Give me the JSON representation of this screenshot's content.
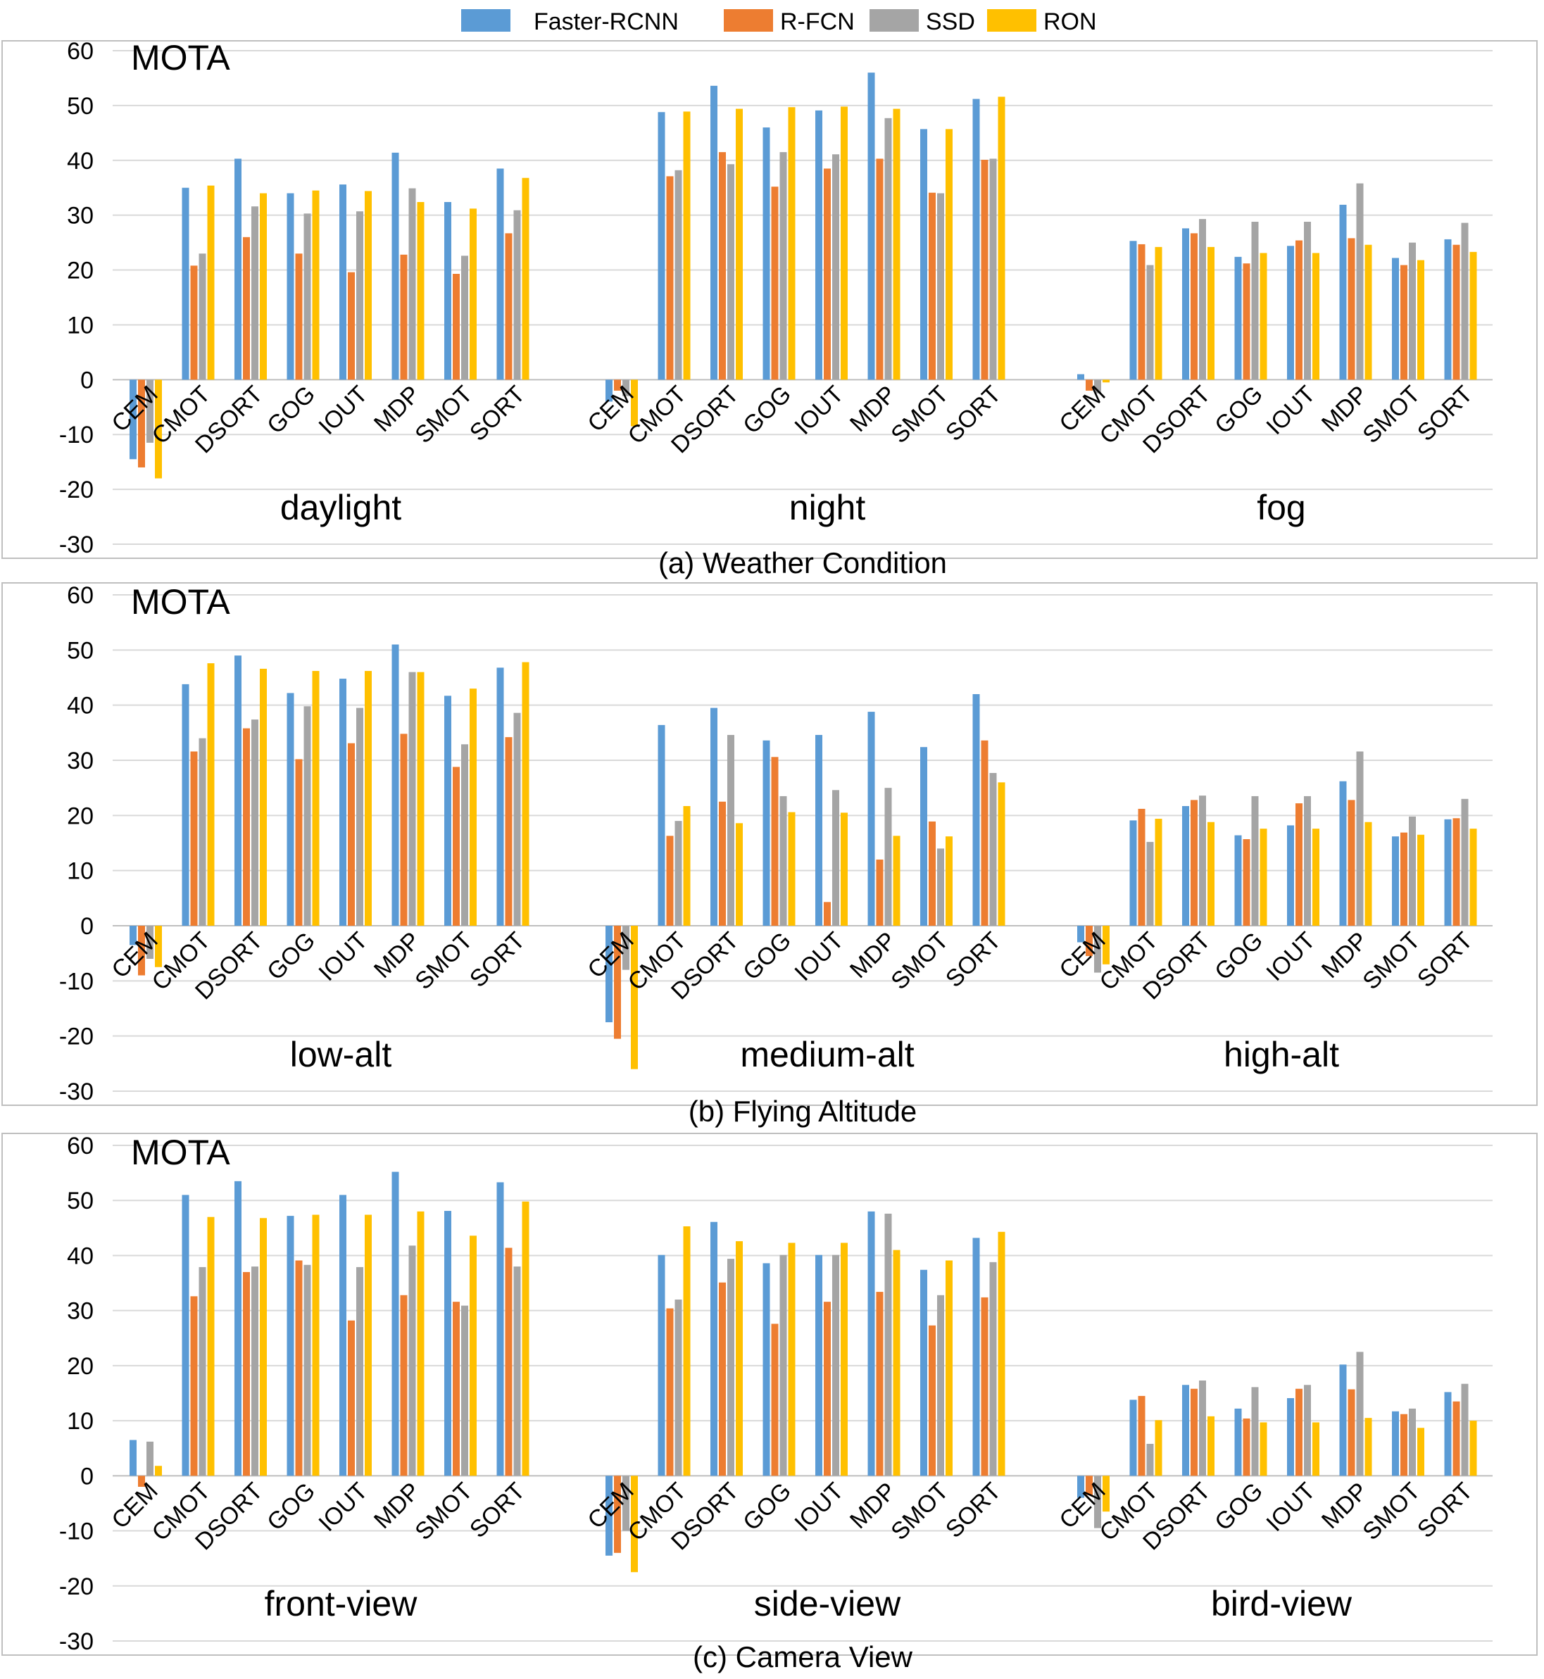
{
  "legend": [
    {
      "name": "Faster-RCNN",
      "color": "#5b9bd5"
    },
    {
      "name": "R-FCN",
      "color": "#ed7d31"
    },
    {
      "name": "SSD",
      "color": "#a5a5a5"
    },
    {
      "name": "RON",
      "color": "#ffc000"
    }
  ],
  "chart_data": [
    {
      "type": "bar",
      "caption": "(a) Weather Condition",
      "ylabel": "MOTA",
      "ylim": [
        -30,
        60
      ],
      "yticks": [
        "60",
        "50",
        "40",
        "30",
        "20",
        "10",
        "0",
        "-10",
        "-20",
        "-30"
      ],
      "categories": [
        "CEM",
        "CMOT",
        "DSORT",
        "GOG",
        "IOUT",
        "MDP",
        "SMOT",
        "SORT"
      ],
      "groups": [
        {
          "name": "daylight",
          "series": {
            "Faster-RCNN": [
              -14.5,
              35.0,
              40.3,
              34.0,
              35.6,
              41.4,
              32.4,
              38.5
            ],
            "R-FCN": [
              -16.0,
              20.8,
              26.0,
              23.0,
              19.6,
              22.8,
              19.3,
              26.7
            ],
            "SSD": [
              -11.5,
              23.0,
              31.6,
              30.3,
              30.7,
              34.9,
              22.6,
              30.9
            ],
            "RON": [
              -18.0,
              35.4,
              34.0,
              34.5,
              34.4,
              32.4,
              31.2,
              36.8
            ]
          }
        },
        {
          "name": "night",
          "series": {
            "Faster-RCNN": [
              -4.0,
              48.8,
              53.6,
              46.0,
              49.1,
              56.0,
              45.7,
              51.2
            ],
            "R-FCN": [
              -2.0,
              37.1,
              41.5,
              35.2,
              38.5,
              40.3,
              34.1,
              40.1
            ],
            "SSD": [
              -3.0,
              38.2,
              39.3,
              41.5,
              41.1,
              47.7,
              34.0,
              40.3
            ],
            "RON": [
              -8.5,
              48.9,
              49.4,
              49.7,
              49.8,
              49.4,
              45.7,
              51.6
            ]
          }
        },
        {
          "name": "fog",
          "series": {
            "Faster-RCNN": [
              1.0,
              25.3,
              27.6,
              22.4,
              24.4,
              31.9,
              22.2,
              25.6
            ],
            "R-FCN": [
              -2.0,
              24.7,
              26.7,
              21.2,
              25.4,
              25.8,
              20.9,
              24.6
            ],
            "SSD": [
              -2.5,
              20.9,
              29.3,
              28.8,
              28.8,
              35.8,
              25.0,
              28.6
            ],
            "RON": [
              -0.5,
              24.2,
              24.2,
              23.1,
              23.1,
              24.6,
              21.8,
              23.3
            ]
          }
        }
      ]
    },
    {
      "type": "bar",
      "caption": "(b) Flying Altitude",
      "ylabel": "MOTA",
      "ylim": [
        -30,
        60
      ],
      "yticks": [
        "60",
        "50",
        "40",
        "30",
        "20",
        "10",
        "0",
        "-10",
        "-20",
        "-30"
      ],
      "categories": [
        "CEM",
        "CMOT",
        "DSORT",
        "GOG",
        "IOUT",
        "MDP",
        "SMOT",
        "SORT"
      ],
      "groups": [
        {
          "name": "low-alt",
          "series": {
            "Faster-RCNN": [
              -3.5,
              43.8,
              49.0,
              42.2,
              44.8,
              51.0,
              41.7,
              46.8
            ],
            "R-FCN": [
              -9.0,
              31.6,
              35.8,
              30.2,
              33.1,
              34.8,
              28.8,
              34.2
            ],
            "SSD": [
              -6.0,
              34.0,
              37.4,
              39.8,
              39.5,
              46.0,
              32.9,
              38.6
            ],
            "RON": [
              -7.5,
              47.6,
              46.6,
              46.2,
              46.2,
              46.0,
              43.0,
              47.8
            ]
          }
        },
        {
          "name": "medium-alt",
          "series": {
            "Faster-RCNN": [
              -17.5,
              36.4,
              39.5,
              33.6,
              34.6,
              38.8,
              32.4,
              42.0
            ],
            "R-FCN": [
              -20.5,
              16.3,
              22.5,
              30.6,
              4.3,
              12.0,
              18.9,
              33.6
            ],
            "SSD": [
              -8.0,
              19.0,
              34.6,
              23.5,
              24.6,
              25.0,
              14.0,
              27.7
            ],
            "RON": [
              -26.0,
              21.7,
              18.6,
              20.6,
              20.5,
              16.3,
              16.2,
              26.0
            ]
          }
        },
        {
          "name": "high-alt",
          "series": {
            "Faster-RCNN": [
              -3.0,
              19.1,
              21.7,
              16.4,
              18.2,
              26.2,
              16.2,
              19.3
            ],
            "R-FCN": [
              -5.5,
              21.2,
              22.8,
              15.7,
              22.2,
              22.8,
              16.9,
              19.5
            ],
            "SSD": [
              -8.5,
              15.2,
              23.6,
              23.5,
              23.5,
              31.6,
              19.8,
              23.0
            ],
            "RON": [
              -7.0,
              19.4,
              18.8,
              17.6,
              17.6,
              18.8,
              16.5,
              17.6
            ]
          }
        }
      ]
    },
    {
      "type": "bar",
      "caption": "(c) Camera View",
      "ylabel": "MOTA",
      "ylim": [
        -30,
        60
      ],
      "yticks": [
        "60",
        "50",
        "40",
        "30",
        "20",
        "10",
        "0",
        "-10",
        "-20",
        "-30"
      ],
      "categories": [
        "CEM",
        "CMOT",
        "DSORT",
        "GOG",
        "IOUT",
        "MDP",
        "SMOT",
        "SORT"
      ],
      "groups": [
        {
          "name": "front-view",
          "series": {
            "Faster-RCNN": [
              6.5,
              51.0,
              53.5,
              47.2,
              51.0,
              55.2,
              48.1,
              53.3
            ],
            "R-FCN": [
              -2.0,
              32.6,
              37.0,
              39.1,
              28.2,
              32.8,
              31.6,
              41.4
            ],
            "SSD": [
              6.2,
              37.9,
              38.0,
              38.3,
              37.9,
              41.8,
              30.9,
              38.0
            ],
            "RON": [
              1.8,
              47.0,
              46.8,
              47.4,
              47.4,
              48.0,
              43.6,
              49.8
            ]
          }
        },
        {
          "name": "side-view",
          "series": {
            "Faster-RCNN": [
              -14.5,
              40.1,
              46.1,
              38.6,
              40.1,
              48.0,
              37.4,
              43.2
            ],
            "R-FCN": [
              -14.0,
              30.4,
              35.1,
              27.6,
              31.6,
              33.4,
              27.3,
              32.4
            ],
            "SSD": [
              -10.0,
              32.0,
              39.4,
              40.1,
              40.1,
              47.6,
              32.8,
              38.8
            ],
            "RON": [
              -17.5,
              45.3,
              42.6,
              42.3,
              42.3,
              41.0,
              39.1,
              44.3
            ]
          }
        },
        {
          "name": "bird-view",
          "series": {
            "Faster-RCNN": [
              -4.0,
              13.8,
              16.5,
              12.2,
              14.1,
              20.2,
              11.7,
              15.2
            ],
            "R-FCN": [
              -3.5,
              14.5,
              15.8,
              10.4,
              15.8,
              15.7,
              11.2,
              13.5
            ],
            "SSD": [
              -9.5,
              5.8,
              17.3,
              16.1,
              16.5,
              22.5,
              12.2,
              16.7
            ],
            "RON": [
              -6.5,
              10.1,
              10.8,
              9.7,
              9.7,
              10.5,
              8.7,
              10.0
            ]
          }
        }
      ]
    }
  ]
}
